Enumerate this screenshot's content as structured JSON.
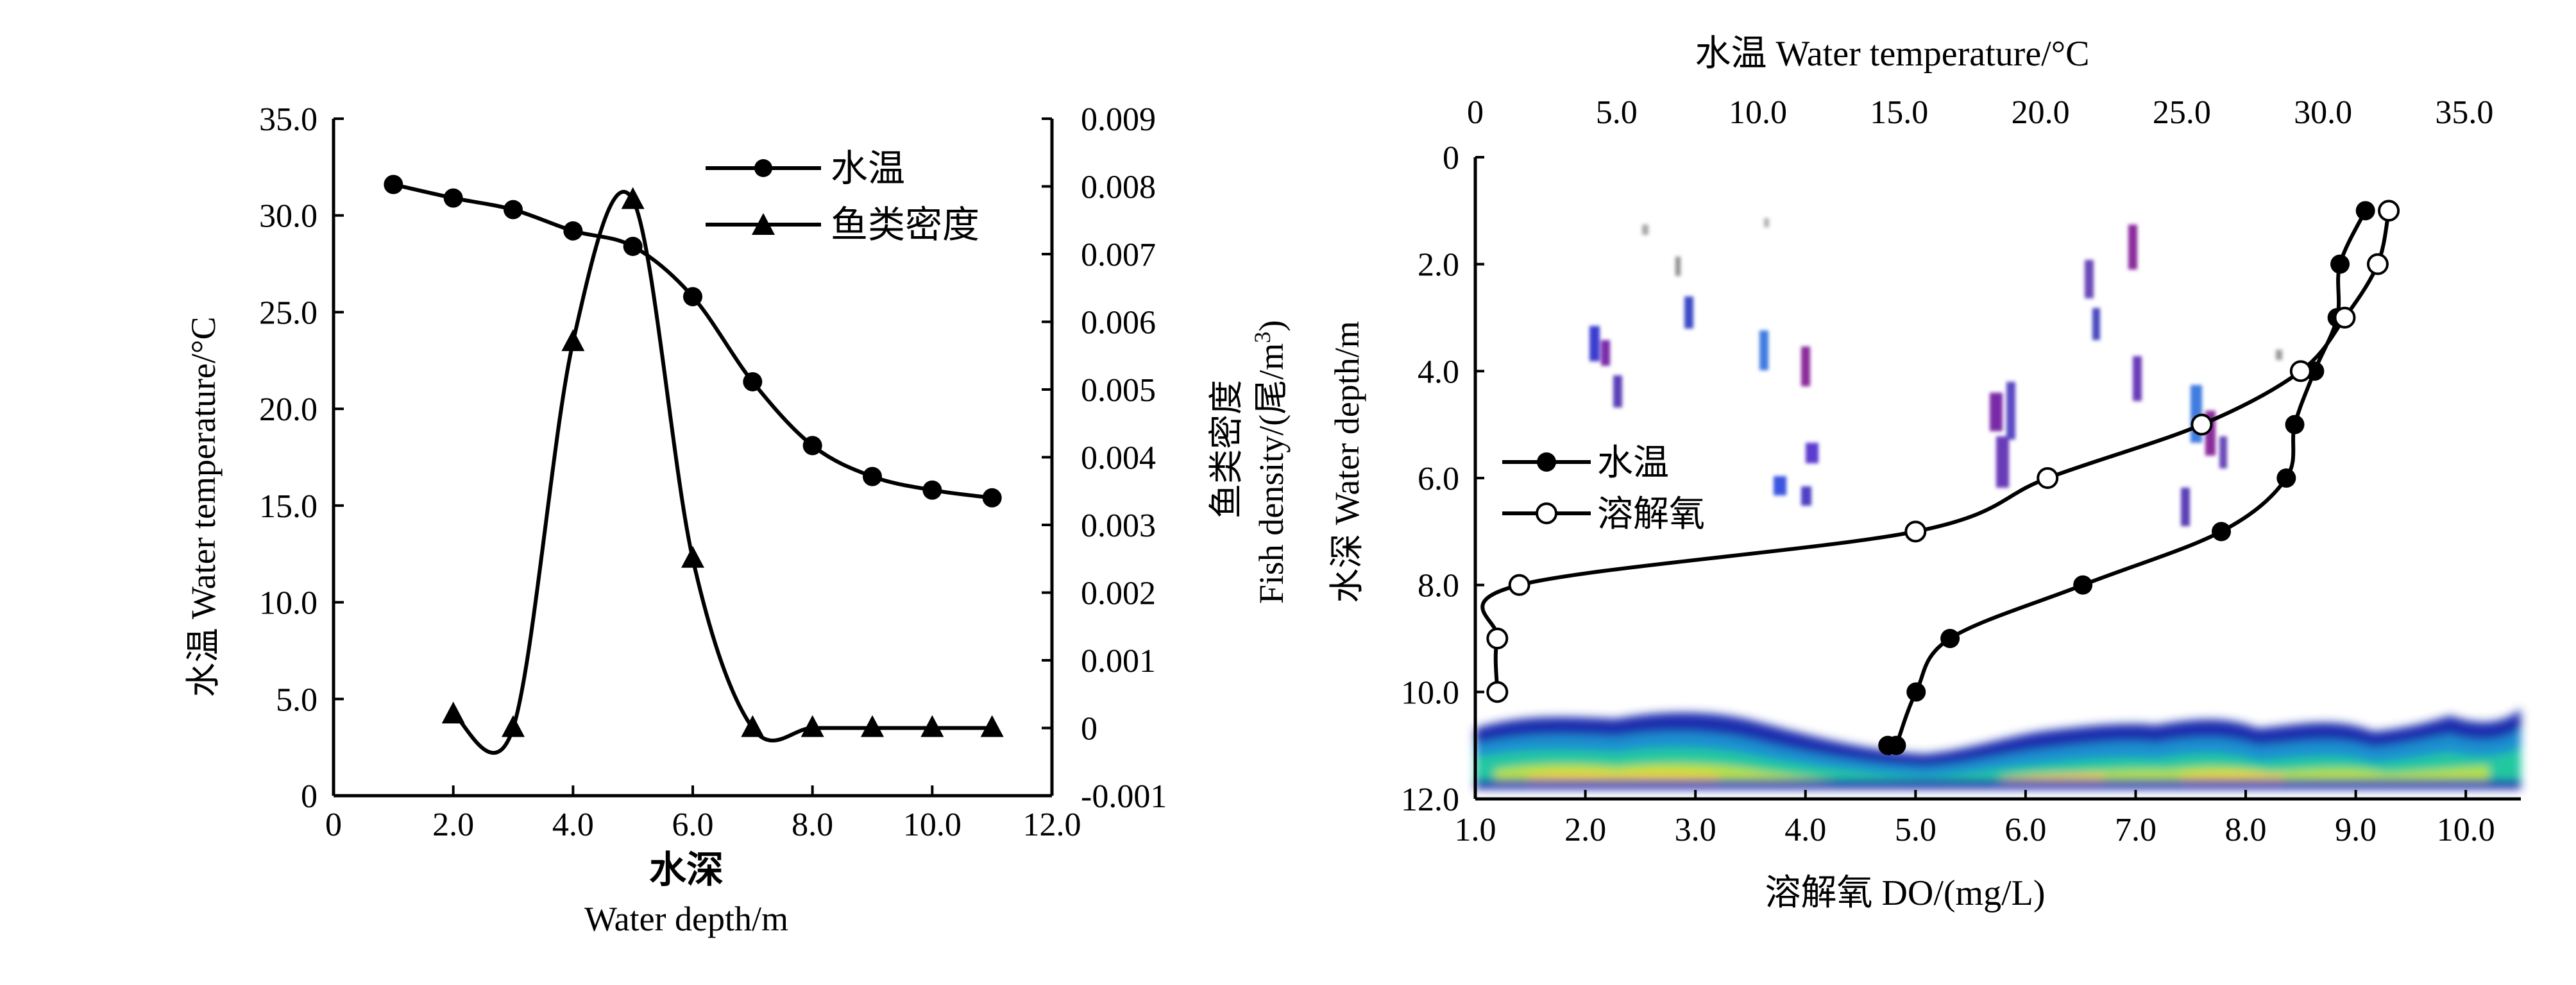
{
  "chart_data": [
    {
      "type": "line",
      "xlabel_cn": "水深",
      "xlabel_en": "Water depth/m",
      "ylabel_left": "水温 Water temperature/°C",
      "ylabel_right_cn": "鱼类密度",
      "ylabel_right_en": "Fish density/(尾/m",
      "ylabel_right_sup": "3",
      "ylabel_right_close": ")",
      "xlim": [
        0,
        12
      ],
      "ylim_left": [
        0,
        35
      ],
      "ylim_right": [
        -0.001,
        0.009
      ],
      "x_ticks": [
        "0",
        "2.0",
        "4.0",
        "6.0",
        "8.0",
        "10.0",
        "12.0"
      ],
      "y_left_ticks": [
        "0",
        "5.0",
        "10.0",
        "15.0",
        "20.0",
        "25.0",
        "30.0",
        "35.0"
      ],
      "y_right_ticks": [
        "-0.001",
        "0",
        "0.001",
        "0.002",
        "0.003",
        "0.004",
        "0.005",
        "0.006",
        "0.007",
        "0.008",
        "0.009"
      ],
      "legend_position": "top-right",
      "series": [
        {
          "name": "水温",
          "axis": "left",
          "marker": "filled-circle",
          "x": [
            1,
            2,
            3,
            4,
            5,
            6,
            7,
            8,
            9,
            10,
            11
          ],
          "y": [
            31.6,
            30.9,
            30.3,
            29.2,
            28.4,
            25.8,
            21.4,
            18.1,
            16.5,
            15.8,
            15.4
          ]
        },
        {
          "name": "鱼类密度",
          "axis": "right",
          "marker": "filled-triangle",
          "x": [
            2,
            3,
            4,
            5,
            6,
            7,
            8,
            9,
            10,
            11
          ],
          "y": [
            0.0002,
            0.0,
            0.0057,
            0.0078,
            0.0025,
            0.0,
            0.0,
            0.0,
            0.0,
            0.0
          ]
        }
      ]
    },
    {
      "type": "line",
      "background": "echogram",
      "xlabel_top": "水温 Water temperature/°C",
      "xlabel_bottom": "溶解氧 DO/(mg/L)",
      "ylabel": "水深 Water depth/m",
      "xlim_top": [
        0,
        37
      ],
      "xlim_bottom": [
        1,
        10.5
      ],
      "ylim": [
        0,
        12
      ],
      "y_inverted": true,
      "x_top_ticks": [
        "0",
        "5.0",
        "10.0",
        "15.0",
        "20.0",
        "25.0",
        "30.0",
        "35.0"
      ],
      "x_bottom_ticks": [
        "1.0",
        "2.0",
        "3.0",
        "4.0",
        "5.0",
        "6.0",
        "7.0",
        "8.0",
        "9.0",
        "10.0"
      ],
      "y_ticks": [
        "0",
        "2.0",
        "4.0",
        "6.0",
        "8.0",
        "10.0",
        "12.0"
      ],
      "legend_position": "middle-left",
      "series": [
        {
          "name": "水温",
          "axis": "top",
          "marker": "filled-circle",
          "x": [
            31.5,
            30.6,
            30.5,
            29.7,
            29.0,
            28.7,
            26.4,
            21.5,
            16.8,
            15.6,
            14.9,
            14.6
          ],
          "y": [
            1,
            2,
            3,
            4,
            5,
            6,
            7,
            8,
            9,
            10,
            11,
            11
          ]
        },
        {
          "name": "溶解氧",
          "axis": "bottom",
          "marker": "open-circle",
          "x": [
            9.3,
            9.2,
            8.9,
            8.5,
            7.6,
            6.2,
            5.0,
            1.4,
            1.2,
            1.2
          ],
          "y": [
            1,
            2,
            3,
            4,
            5,
            6,
            7,
            8,
            9,
            10
          ]
        }
      ]
    }
  ]
}
